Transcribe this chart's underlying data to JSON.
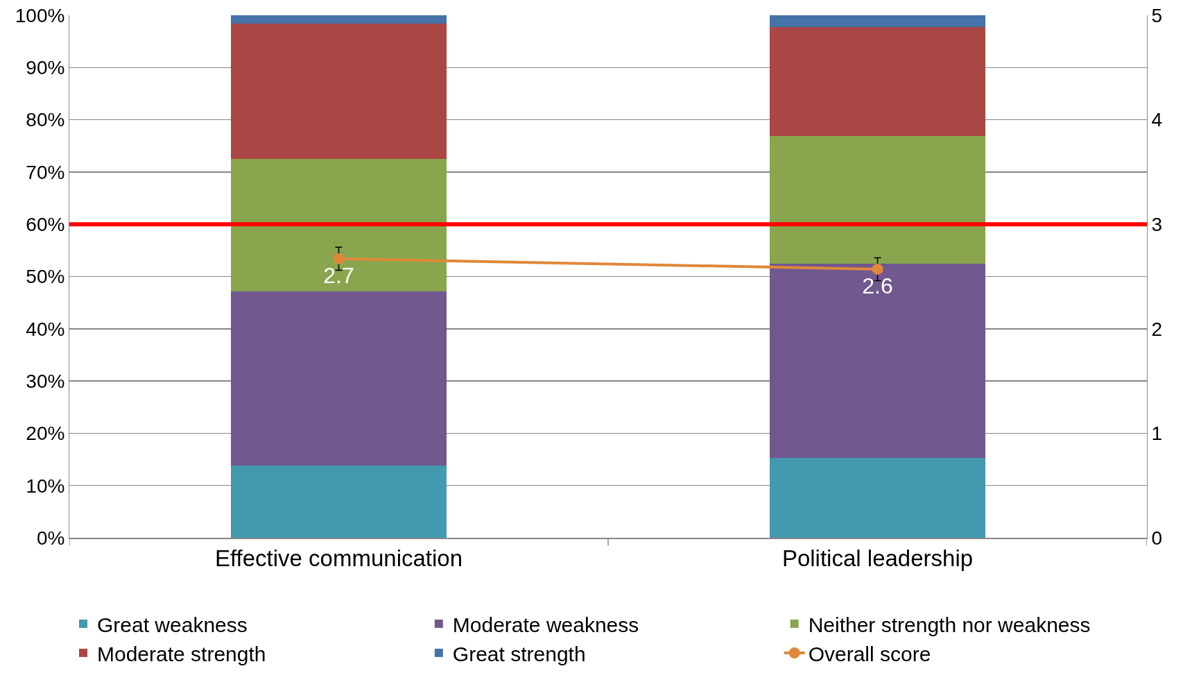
{
  "chart_data": {
    "type": "bar",
    "stacked": true,
    "categories": [
      "Effective communication",
      "Political leadership"
    ],
    "series": [
      {
        "name": "Great weakness",
        "color": "#4299b0",
        "values": [
          13.8,
          15.3
        ]
      },
      {
        "name": "Moderate weakness",
        "color": "#71588f",
        "values": [
          33.3,
          37.2
        ]
      },
      {
        "name": "Neither strength nor weakness",
        "color": "#89a54e",
        "values": [
          25.4,
          24.4
        ]
      },
      {
        "name": "Moderate strength",
        "color": "#aa4643",
        "values": [
          25.9,
          20.9
        ]
      },
      {
        "name": "Great strength",
        "color": "#4572a7",
        "values": [
          1.6,
          2.2
        ]
      },
      {
        "name": "Overall score",
        "type": "line",
        "axis": "y2",
        "color": "#e0883a",
        "marker": "circle",
        "values": [
          2.67,
          2.57
        ],
        "errors": [
          0.11,
          0.11
        ],
        "value_labels": [
          "2.7",
          "2.6"
        ]
      }
    ],
    "ylim": [
      0,
      100
    ],
    "yticks": [
      {
        "value": 0,
        "label": "0%"
      },
      {
        "value": 10,
        "label": "10%"
      },
      {
        "value": 20,
        "label": "20%"
      },
      {
        "value": 30,
        "label": "30%"
      },
      {
        "value": 40,
        "label": "40%"
      },
      {
        "value": 50,
        "label": "50%"
      },
      {
        "value": 60,
        "label": "60%"
      },
      {
        "value": 70,
        "label": "70%"
      },
      {
        "value": 80,
        "label": "80%"
      },
      {
        "value": 90,
        "label": "90%"
      },
      {
        "value": 100,
        "label": "100%"
      }
    ],
    "y2lim": [
      0,
      5
    ],
    "y2ticks": [
      0,
      1,
      2,
      3,
      4,
      5
    ],
    "ref_lines": [
      {
        "axis": "y2",
        "value": 3,
        "color": "#ff0000"
      }
    ],
    "grid": "y",
    "legend": "bottom"
  }
}
